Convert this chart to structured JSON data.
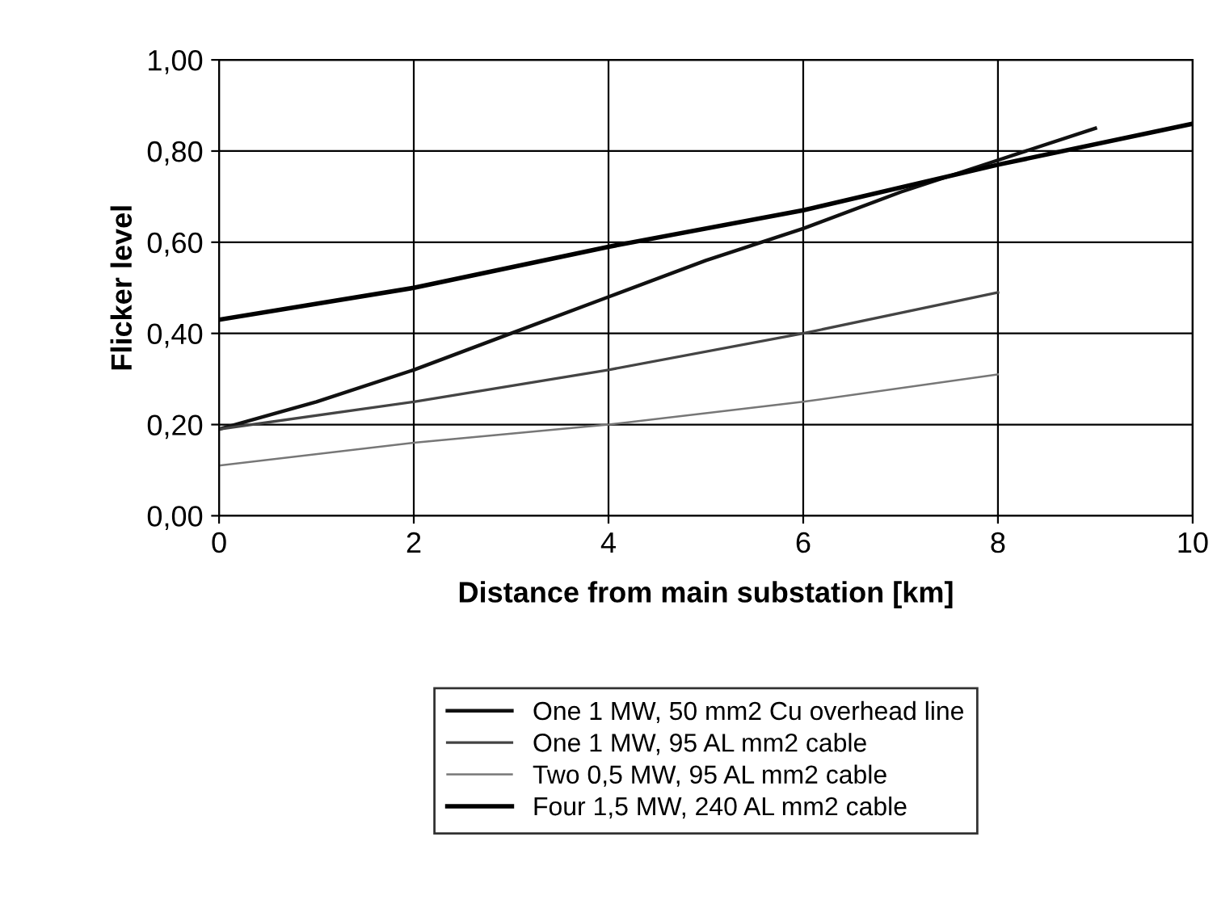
{
  "chart_data": {
    "type": "line",
    "xlabel": "Distance from main substation [km]",
    "ylabel": "Flicker level",
    "series": [
      {
        "name": "One 1 MW, 50 mm2 Cu overhead line",
        "color": "#111111",
        "x": [
          0,
          1,
          2,
          3,
          4,
          5,
          6,
          7,
          8,
          9
        ],
        "values": [
          0.19,
          0.25,
          0.32,
          0.4,
          0.48,
          0.56,
          0.63,
          0.71,
          0.78,
          0.85
        ]
      },
      {
        "name": "One 1 MW, 95 AL mm2 cable",
        "color": "#444444",
        "x": [
          0,
          2,
          4,
          6,
          8
        ],
        "values": [
          0.19,
          0.25,
          0.32,
          0.4,
          0.49
        ]
      },
      {
        "name": "Two 0,5 MW, 95 AL mm2 cable",
        "color": "#777777",
        "x": [
          0,
          2,
          4,
          6,
          8
        ],
        "values": [
          0.11,
          0.16,
          0.2,
          0.25,
          0.31
        ]
      },
      {
        "name": "Four 1,5 MW, 240 AL mm2 cable",
        "color": "#000000",
        "x": [
          0,
          2,
          4,
          6,
          8,
          10
        ],
        "values": [
          0.43,
          0.5,
          0.59,
          0.67,
          0.77,
          0.86
        ]
      }
    ],
    "xlim": [
      0,
      10
    ],
    "xticks": [
      0,
      2,
      4,
      6,
      8,
      10
    ],
    "ylim": [
      0,
      1
    ],
    "yticks": [
      {
        "value": 0,
        "label": "0,00"
      },
      {
        "value": 0.2,
        "label": "0,20"
      },
      {
        "value": 0.4,
        "label": "0,40"
      },
      {
        "value": 0.6,
        "label": "0,60"
      },
      {
        "value": 0.8,
        "label": "0,80"
      },
      {
        "value": 1,
        "label": "1,00"
      }
    ],
    "grid": true,
    "legend": "bottom",
    "marker": "none",
    "line_style": "solid"
  }
}
